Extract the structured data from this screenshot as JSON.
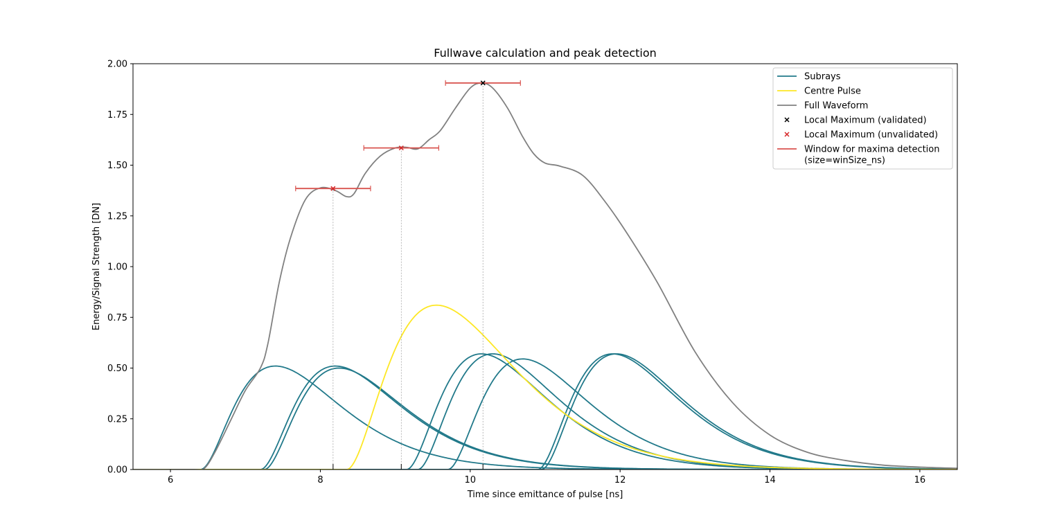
{
  "chart_data": {
    "type": "line",
    "title": "Fullwave calculation and peak detection",
    "xlabel": "Time since emittance of pulse [ns]",
    "ylabel": "Energy/Signal Strength [DN]",
    "xlim": [
      5.5,
      16.5
    ],
    "ylim": [
      0.0,
      2.0
    ],
    "xticks": [
      6,
      8,
      10,
      12,
      14,
      16
    ],
    "yticks": [
      0.0,
      0.25,
      0.5,
      0.75,
      1.0,
      1.25,
      1.5,
      1.75,
      2.0
    ],
    "ytick_labels": [
      "0.00",
      "0.25",
      "0.50",
      "0.75",
      "1.00",
      "1.25",
      "1.50",
      "1.75",
      "2.00"
    ],
    "grid": false,
    "legend_position": "top-right",
    "colors": {
      "subrays": "#21798a",
      "centre_pulse": "#fde725",
      "full_waveform": "#808080",
      "validated": "#000000",
      "unvalidated": "#d62728",
      "window": "#d9534f",
      "guide": "#999999"
    },
    "pulse_shape": "x^2 * exp(-x / 0.5) scaled, x = t - onset",
    "subrays": [
      {
        "onset": 6.4,
        "peak": 0.51
      },
      {
        "onset": 7.2,
        "peak": 0.51
      },
      {
        "onset": 7.25,
        "peak": 0.5
      },
      {
        "onset": 9.15,
        "peak": 0.57
      },
      {
        "onset": 9.3,
        "peak": 0.57
      },
      {
        "onset": 9.7,
        "peak": 0.545
      },
      {
        "onset": 10.9,
        "peak": 0.57
      },
      {
        "onset": 10.95,
        "peak": 0.57
      }
    ],
    "centre_pulse": {
      "onset": 8.35,
      "peak": 0.81,
      "tau": 0.6
    },
    "full_waveform": {
      "x": [
        5.5,
        6.3,
        6.45,
        6.6,
        6.8,
        7.0,
        7.2,
        7.3,
        7.45,
        7.6,
        7.8,
        8.0,
        8.2,
        8.35,
        8.45,
        8.6,
        8.8,
        9.0,
        9.15,
        9.3,
        9.45,
        9.6,
        9.8,
        10.0,
        10.15,
        10.3,
        10.5,
        10.7,
        10.85,
        11.0,
        11.2,
        11.5,
        11.8,
        12.1,
        12.5,
        13.0,
        13.5,
        14.0,
        14.5,
        15.0,
        15.5,
        16.0,
        16.5
      ],
      "y": [
        0.0,
        0.0,
        0.005,
        0.09,
        0.24,
        0.39,
        0.5,
        0.62,
        0.92,
        1.14,
        1.33,
        1.388,
        1.375,
        1.345,
        1.36,
        1.46,
        1.545,
        1.585,
        1.588,
        1.58,
        1.625,
        1.67,
        1.78,
        1.88,
        1.905,
        1.88,
        1.78,
        1.64,
        1.555,
        1.51,
        1.495,
        1.45,
        1.32,
        1.16,
        0.92,
        0.58,
        0.33,
        0.17,
        0.085,
        0.045,
        0.022,
        0.012,
        0.006
      ]
    },
    "peaks": [
      {
        "x": 8.17,
        "y": 1.385,
        "validated": false,
        "window": [
          7.67,
          8.67
        ]
      },
      {
        "x": 9.08,
        "y": 1.585,
        "validated": false,
        "window": [
          8.58,
          9.58
        ]
      },
      {
        "x": 10.17,
        "y": 1.905,
        "validated": true,
        "window": [
          9.67,
          10.67
        ]
      }
    ],
    "legend": [
      {
        "label": "Subrays",
        "kind": "line",
        "color": "#21798a"
      },
      {
        "label": "Centre Pulse",
        "kind": "line",
        "color": "#fde725"
      },
      {
        "label": "Full Waveform",
        "kind": "line",
        "color": "#808080"
      },
      {
        "label": "Local Maximum (validated)",
        "kind": "marker",
        "color": "#000000"
      },
      {
        "label": "Local Maximum (unvalidated)",
        "kind": "marker",
        "color": "#d62728"
      },
      {
        "label": "Window for maxima detection",
        "label2": "(size=winSize_ns)",
        "kind": "line",
        "color": "#d9534f"
      }
    ]
  }
}
